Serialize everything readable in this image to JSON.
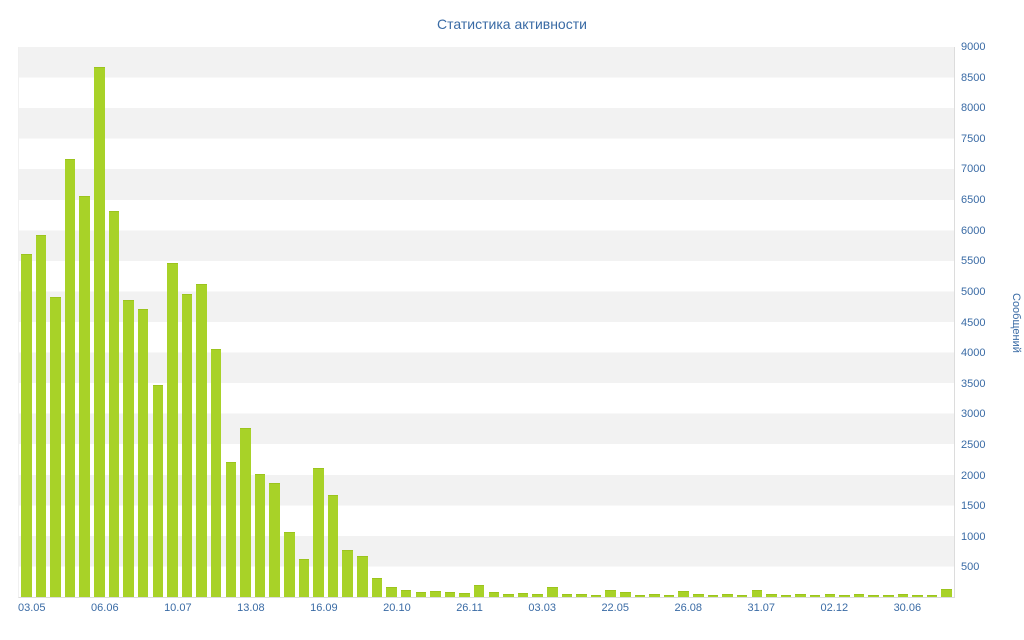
{
  "chart_data": {
    "type": "bar",
    "title": "Статистика активности",
    "ylabel": "Сообщений",
    "xlabel": "",
    "ylim": [
      0,
      9000
    ],
    "y_tick_step": 500,
    "grid": "horizontal-stripes",
    "legend": "none",
    "y_axis_position": "right",
    "x_tick_every": 5,
    "x_tick_labels": [
      "03.05",
      "06.06",
      "10.07",
      "13.08",
      "16.09",
      "20.10",
      "26.11",
      "03.03",
      "22.05",
      "26.08",
      "31.07",
      "02.12",
      "30.06"
    ],
    "values": [
      5600,
      5900,
      4900,
      7150,
      6550,
      8650,
      6300,
      4850,
      4700,
      3450,
      5450,
      4950,
      5100,
      4050,
      2200,
      2750,
      2000,
      1850,
      1050,
      600,
      2100,
      1650,
      750,
      650,
      300,
      150,
      100,
      60,
      80,
      70,
      50,
      180,
      60,
      30,
      50,
      40,
      150,
      40,
      30,
      20,
      100,
      60,
      20,
      30,
      20,
      80,
      30,
      20,
      40,
      20,
      100,
      30,
      20,
      40,
      20,
      30,
      20,
      40,
      20,
      20,
      30,
      20,
      20,
      120
    ],
    "colors": {
      "bar": "#a8d228",
      "bar_border": "#9cc41e",
      "stripe": "#f2f2f2",
      "axis_text": "#3a6ba5",
      "title_text": "#3a6ba5"
    }
  }
}
